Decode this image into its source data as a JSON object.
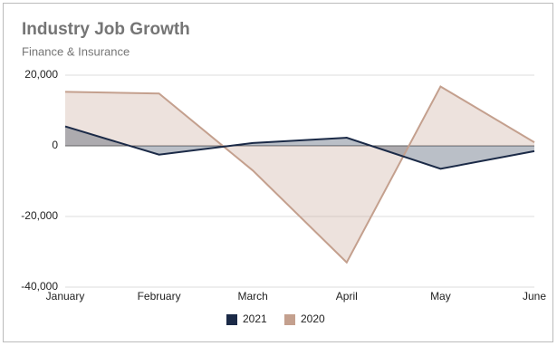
{
  "chart_data": {
    "type": "area",
    "title": "Industry Job Growth",
    "subtitle": "Finance & Insurance",
    "categories": [
      "January",
      "February",
      "March",
      "April",
      "May",
      "June"
    ],
    "series": [
      {
        "name": "2021",
        "color": "#1b2a47",
        "values": [
          5500,
          -2500,
          800,
          2300,
          -6500,
          -1500
        ]
      },
      {
        "name": "2020",
        "color": "#c4a08e",
        "values": [
          15300,
          14800,
          -7000,
          -33000,
          16800,
          1000
        ]
      }
    ],
    "ylim": [
      -40000,
      20000
    ],
    "yticks": [
      {
        "value": -40000,
        "label": "-40,000"
      },
      {
        "value": -20000,
        "label": "-20,000"
      },
      0,
      {
        "value": 20000,
        "label": "20,000"
      }
    ],
    "grid": true,
    "legend": "bottom"
  }
}
